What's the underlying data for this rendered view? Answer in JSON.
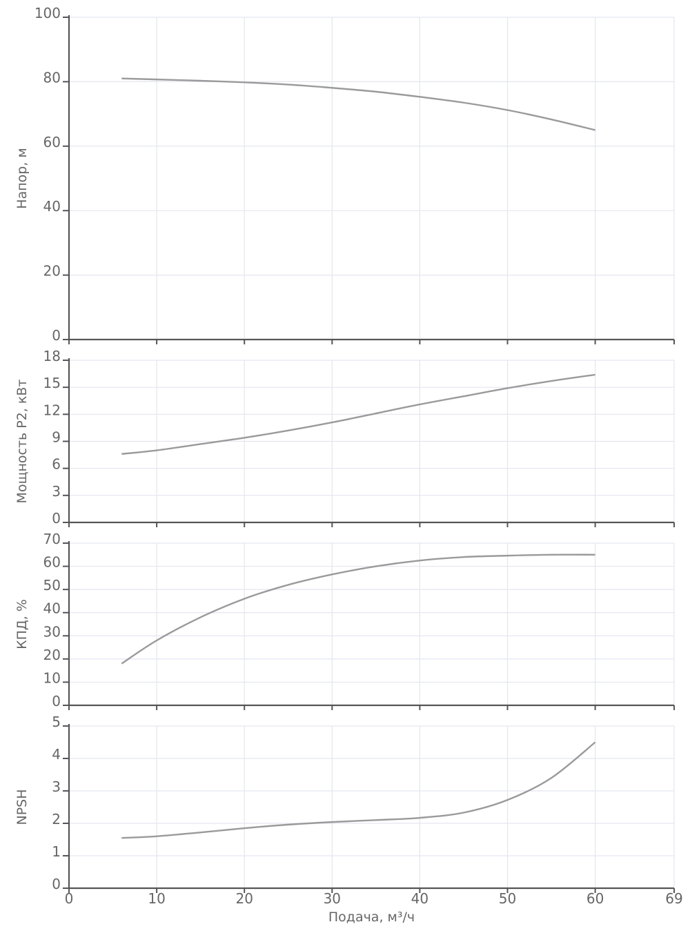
{
  "chart_data": [
    {
      "type": "line",
      "ylabel": "Напор, м",
      "xlim": [
        0,
        69
      ],
      "ylim": [
        0,
        100
      ],
      "yticks": [
        0,
        20,
        40,
        60,
        80,
        100
      ],
      "grid": true,
      "series": [
        {
          "x": [
            6,
            10,
            15,
            20,
            25,
            30,
            35,
            40,
            45,
            50,
            55,
            60
          ],
          "y": [
            81,
            80.7,
            80.3,
            79.8,
            79.1,
            78.1,
            76.9,
            75.3,
            73.5,
            71.2,
            68.3,
            65
          ]
        }
      ]
    },
    {
      "type": "line",
      "ylabel": "Мощность P2, кВт",
      "xlim": [
        0,
        69
      ],
      "ylim": [
        0,
        18
      ],
      "yticks": [
        0,
        3,
        6,
        9,
        12,
        15,
        18
      ],
      "grid": true,
      "series": [
        {
          "x": [
            6,
            10,
            15,
            20,
            25,
            30,
            35,
            40,
            45,
            50,
            55,
            60
          ],
          "y": [
            7.6,
            8.0,
            8.7,
            9.4,
            10.2,
            11.1,
            12.1,
            13.1,
            14.0,
            14.9,
            15.7,
            16.4
          ]
        }
      ]
    },
    {
      "type": "line",
      "ylabel": "КПД, %",
      "xlim": [
        0,
        69
      ],
      "ylim": [
        0,
        70
      ],
      "yticks": [
        0,
        10,
        20,
        30,
        40,
        50,
        60,
        70
      ],
      "grid": true,
      "series": [
        {
          "x": [
            6,
            10,
            15,
            20,
            25,
            30,
            35,
            40,
            45,
            50,
            55,
            60
          ],
          "y": [
            18,
            28,
            38,
            46,
            52,
            56.5,
            60,
            62.5,
            64,
            64.6,
            65,
            65
          ]
        }
      ]
    },
    {
      "type": "line",
      "ylabel": "NPSH",
      "xlabel": "Подача, м³/ч",
      "xlim": [
        0,
        69
      ],
      "ylim": [
        0,
        5
      ],
      "yticks": [
        0,
        1,
        2,
        3,
        4,
        5
      ],
      "xticks": [
        0,
        10,
        20,
        30,
        40,
        50,
        60,
        69
      ],
      "grid": true,
      "series": [
        {
          "x": [
            6,
            10,
            15,
            20,
            25,
            30,
            35,
            40,
            45,
            50,
            55,
            60
          ],
          "y": [
            1.55,
            1.6,
            1.72,
            1.85,
            1.96,
            2.04,
            2.1,
            2.17,
            2.33,
            2.72,
            3.4,
            4.5
          ]
        }
      ]
    }
  ],
  "colors": {
    "line": "#9a9a9a",
    "grid": "#e4e6f0",
    "axis": "#555555",
    "text": "#666666"
  }
}
